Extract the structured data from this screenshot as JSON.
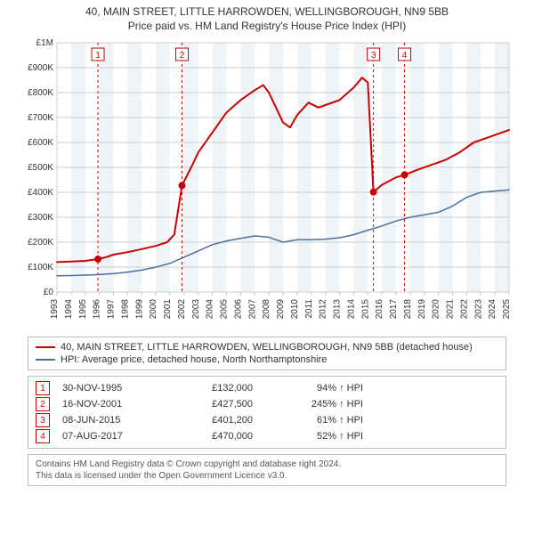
{
  "titles": {
    "line1": "40, MAIN STREET, LITTLE HARROWDEN, WELLINGBOROUGH, NN9 5BB",
    "line2": "Price paid vs. HM Land Registry's House Price Index (HPI)"
  },
  "chart": {
    "type": "line",
    "background_color": "#ffffff",
    "plot_bg_band_color": "#f0f3f8",
    "plot_border_color": "#cccccc",
    "grid_color": "#cccccc",
    "x": {
      "min": 1993,
      "max": 2025,
      "tick_step": 1
    },
    "y": {
      "min": 0,
      "max": 1000000,
      "tick_step": 100000,
      "tick_labels": [
        "£0",
        "£100K",
        "£200K",
        "£300K",
        "£400K",
        "£500K",
        "£600K",
        "£700K",
        "£800K",
        "£900K",
        "£1M"
      ]
    },
    "series": [
      {
        "name": "price_paid",
        "color": "#cc0000",
        "width": 2,
        "points": [
          [
            1993.0,
            120000
          ],
          [
            1994.0,
            122000
          ],
          [
            1995.0,
            125000
          ],
          [
            1995.9,
            132000
          ],
          [
            1996.5,
            140000
          ],
          [
            1997.0,
            150000
          ],
          [
            1998.0,
            160000
          ],
          [
            1999.0,
            172000
          ],
          [
            2000.0,
            185000
          ],
          [
            2000.8,
            200000
          ],
          [
            2001.3,
            230000
          ],
          [
            2001.85,
            427500
          ],
          [
            2002.5,
            500000
          ],
          [
            2003.0,
            560000
          ],
          [
            2004.0,
            640000
          ],
          [
            2005.0,
            720000
          ],
          [
            2006.0,
            770000
          ],
          [
            2007.0,
            810000
          ],
          [
            2007.6,
            830000
          ],
          [
            2008.0,
            800000
          ],
          [
            2008.5,
            740000
          ],
          [
            2009.0,
            680000
          ],
          [
            2009.5,
            660000
          ],
          [
            2010.0,
            710000
          ],
          [
            2010.8,
            760000
          ],
          [
            2011.5,
            740000
          ],
          [
            2012.0,
            750000
          ],
          [
            2013.0,
            770000
          ],
          [
            2014.0,
            820000
          ],
          [
            2014.6,
            860000
          ],
          [
            2015.0,
            840000
          ],
          [
            2015.4,
            401200
          ],
          [
            2016.0,
            430000
          ],
          [
            2017.0,
            460000
          ],
          [
            2017.6,
            470000
          ],
          [
            2018.5,
            490000
          ],
          [
            2019.5,
            510000
          ],
          [
            2020.5,
            530000
          ],
          [
            2021.5,
            560000
          ],
          [
            2022.5,
            600000
          ],
          [
            2023.5,
            620000
          ],
          [
            2024.5,
            640000
          ],
          [
            2025.0,
            650000
          ]
        ]
      },
      {
        "name": "hpi",
        "color": "#4a6fa5",
        "width": 1.5,
        "points": [
          [
            1993.0,
            65000
          ],
          [
            1994.0,
            66000
          ],
          [
            1995.0,
            68000
          ],
          [
            1996.0,
            70000
          ],
          [
            1997.0,
            74000
          ],
          [
            1998.0,
            80000
          ],
          [
            1999.0,
            88000
          ],
          [
            2000.0,
            100000
          ],
          [
            2001.0,
            115000
          ],
          [
            2002.0,
            140000
          ],
          [
            2003.0,
            165000
          ],
          [
            2004.0,
            190000
          ],
          [
            2005.0,
            205000
          ],
          [
            2006.0,
            215000
          ],
          [
            2007.0,
            225000
          ],
          [
            2008.0,
            220000
          ],
          [
            2009.0,
            200000
          ],
          [
            2010.0,
            210000
          ],
          [
            2011.0,
            210000
          ],
          [
            2012.0,
            212000
          ],
          [
            2013.0,
            218000
          ],
          [
            2014.0,
            230000
          ],
          [
            2015.0,
            248000
          ],
          [
            2016.0,
            265000
          ],
          [
            2017.0,
            285000
          ],
          [
            2018.0,
            300000
          ],
          [
            2019.0,
            310000
          ],
          [
            2020.0,
            320000
          ],
          [
            2021.0,
            345000
          ],
          [
            2022.0,
            380000
          ],
          [
            2023.0,
            400000
          ],
          [
            2024.0,
            405000
          ],
          [
            2025.0,
            410000
          ]
        ]
      }
    ],
    "markers": [
      {
        "n": "1",
        "x": 1995.9,
        "y": 132000,
        "vline_color": "#cc0000"
      },
      {
        "n": "2",
        "x": 2001.85,
        "y": 427500,
        "vline_color": "#cc0000"
      },
      {
        "n": "3",
        "x": 2015.4,
        "y": 401200,
        "vline_color": "#cc0000"
      },
      {
        "n": "4",
        "x": 2017.6,
        "y": 470000,
        "vline_color": "#cc0000"
      }
    ],
    "marker_dot_color": "#cc0000",
    "marker_box_border": "#cc0000",
    "vline_dash": "3,3"
  },
  "legend": {
    "items": [
      {
        "color": "#cc0000",
        "label": "40, MAIN STREET, LITTLE HARROWDEN, WELLINGBOROUGH, NN9 5BB (detached house)"
      },
      {
        "color": "#4a6fa5",
        "label": "HPI: Average price, detached house, North Northamptonshire"
      }
    ]
  },
  "transactions": [
    {
      "n": "1",
      "date": "30-NOV-1995",
      "price": "£132,000",
      "delta": "94% ↑ HPI"
    },
    {
      "n": "2",
      "date": "16-NOV-2001",
      "price": "£427,500",
      "delta": "245% ↑ HPI"
    },
    {
      "n": "3",
      "date": "08-JUN-2015",
      "price": "£401,200",
      "delta": "61% ↑ HPI"
    },
    {
      "n": "4",
      "date": "07-AUG-2017",
      "price": "£470,000",
      "delta": "52% ↑ HPI"
    }
  ],
  "license": {
    "line1": "Contains HM Land Registry data © Crown copyright and database right 2024.",
    "line2": "This data is licensed under the Open Government Licence v3.0."
  }
}
